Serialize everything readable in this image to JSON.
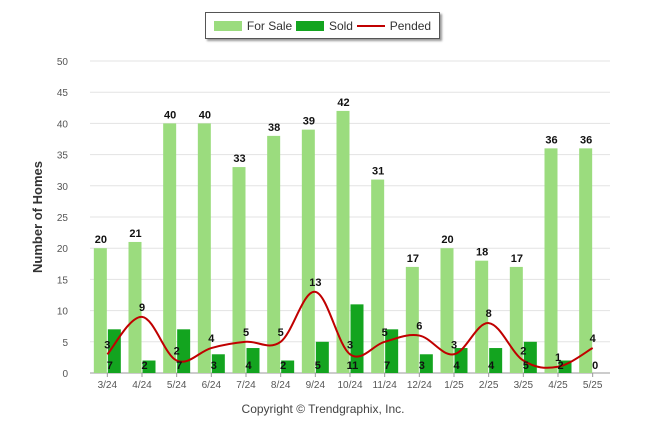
{
  "legend": {
    "items": [
      {
        "label": "For Sale",
        "color": "#9bdc7e"
      },
      {
        "label": "Sold",
        "color": "#13a41f"
      },
      {
        "label": "Pended",
        "color": "#c00000"
      }
    ]
  },
  "copyright": "Copyright © Trendgraphix, Inc.",
  "chart_data": {
    "type": "bar",
    "ylabel": "Number of Homes",
    "xlabel": "",
    "ylim": [
      0,
      50
    ],
    "yticks": [
      0,
      5,
      10,
      15,
      20,
      25,
      30,
      35,
      40,
      45,
      50
    ],
    "grid": true,
    "legend_position": "top-center",
    "categories": [
      "3/24",
      "4/24",
      "5/24",
      "6/24",
      "7/24",
      "8/24",
      "9/24",
      "10/24",
      "11/24",
      "12/24",
      "1/25",
      "2/25",
      "3/25",
      "4/25",
      "5/25"
    ],
    "series": [
      {
        "name": "For Sale",
        "type": "bar",
        "color": "#9bdc7e",
        "values": [
          20,
          21,
          40,
          40,
          33,
          38,
          39,
          42,
          31,
          17,
          20,
          18,
          17,
          36,
          36
        ]
      },
      {
        "name": "Sold",
        "type": "bar",
        "color": "#13a41f",
        "values": [
          7,
          2,
          7,
          3,
          4,
          2,
          5,
          11,
          7,
          3,
          4,
          4,
          5,
          2,
          0
        ]
      },
      {
        "name": "Pended",
        "type": "line",
        "color": "#c00000",
        "values": [
          3,
          9,
          2,
          4,
          5,
          5,
          13,
          3,
          5,
          6,
          3,
          8,
          2,
          1,
          4
        ]
      }
    ]
  }
}
